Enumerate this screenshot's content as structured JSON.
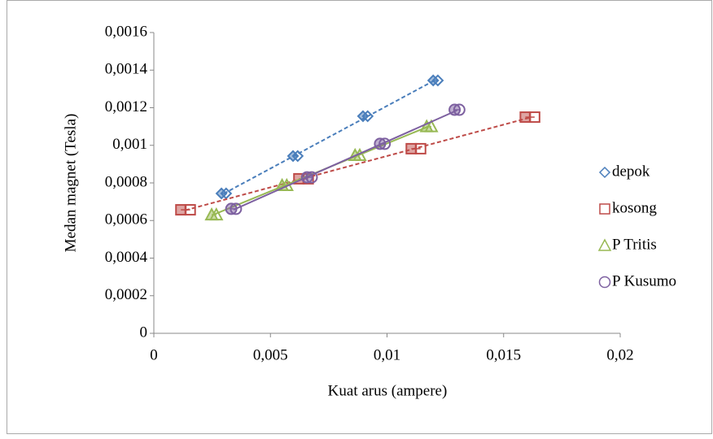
{
  "chart_data": {
    "type": "scatter",
    "x_label": "Kuat arus (ampere)",
    "y_label": "Medan magnet (Tesla)",
    "xlim": [
      0,
      0.02
    ],
    "xticks": [
      0,
      {
        "value": 0.005,
        "label": "0,005"
      },
      {
        "value": 0.01,
        "label": "0,01"
      },
      {
        "value": 0.015,
        "label": "0,015"
      },
      {
        "value": 0.02,
        "label": "0,02"
      }
    ],
    "ylim": [
      0,
      0.0016
    ],
    "yticks": [
      0,
      {
        "value": 0.0002,
        "label": "0,0002"
      },
      {
        "value": 0.0004,
        "label": "0,0004"
      },
      {
        "value": 0.0006,
        "label": "0,0006"
      },
      {
        "value": 0.0008,
        "label": "0,0008"
      },
      {
        "value": 0.001,
        "label": "0,001"
      },
      {
        "value": 0.0012,
        "label": "0,0012"
      },
      {
        "value": 0.0014,
        "label": "0,0014"
      },
      {
        "value": 0.0016,
        "label": "0,0016"
      }
    ],
    "legend": "right",
    "trendline": true,
    "series": [
      {
        "name": "depok",
        "color": "#4a7ebb",
        "marker": "diamond",
        "trend_dash": true,
        "x": [
          0.003,
          0.00607,
          0.00907,
          0.01208
        ],
        "values": [
          0.000744,
          0.000943,
          0.001155,
          0.001345
        ],
        "x_errors": [
          0.0001,
          0.0001,
          0.0001,
          0.0001
        ]
      },
      {
        "name": "kosong",
        "color": "#be4b48",
        "marker": "square",
        "trend_dash": true,
        "x": [
          0.00136,
          0.00642,
          0.01124,
          0.01613
        ],
        "values": [
          0.000657,
          0.000822,
          0.000982,
          0.00115
        ],
        "x_errors": [
          0.0002,
          0.0002,
          0.0002,
          0.0002
        ]
      },
      {
        "name": "P Tritis",
        "color": "#98b954",
        "marker": "triangle",
        "trend_dash": false,
        "x": [
          0.00258,
          0.0056,
          0.00873,
          0.0118
        ],
        "values": [
          0.000631,
          0.000787,
          0.000947,
          0.0011
        ],
        "x_errors": [
          0.0001,
          0.0001,
          0.0001,
          0.0001
        ]
      },
      {
        "name": "P Kusumo",
        "color": "#7d60a0",
        "marker": "circle",
        "trend_dash": false,
        "x": [
          0.00342,
          0.00667,
          0.0098,
          0.013
        ],
        "values": [
          0.000662,
          0.00083,
          0.001008,
          0.001189
        ],
        "x_errors": [
          0.0001,
          0.0001,
          0.0001,
          0.0001
        ]
      }
    ]
  }
}
